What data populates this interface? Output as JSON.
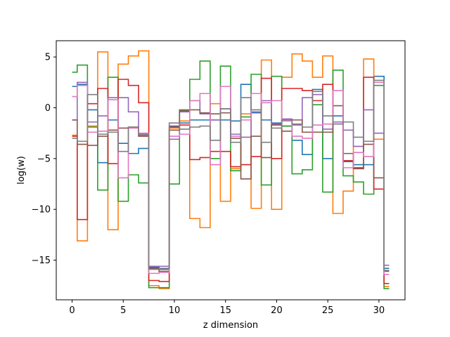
{
  "chart_data": {
    "type": "line",
    "style": "steps-mid",
    "title": "",
    "xlabel": "z dimension",
    "ylabel": "log(w)",
    "xlim": [
      -1.55,
      32.55
    ],
    "ylim": [
      -18.9,
      6.6
    ],
    "xticks": [
      0,
      5,
      10,
      15,
      20,
      25,
      30
    ],
    "xtick_labels": [
      "0",
      "5",
      "10",
      "15",
      "20",
      "25",
      "30"
    ],
    "yticks": [
      -15,
      -10,
      -5,
      0,
      5
    ],
    "ytick_labels": [
      "−15",
      "−10",
      "−5",
      "0",
      "5"
    ],
    "grid": false,
    "legend": "none",
    "x": [
      0,
      1,
      2,
      3,
      4,
      5,
      6,
      7,
      8,
      9,
      10,
      11,
      12,
      13,
      14,
      15,
      16,
      17,
      18,
      19,
      20,
      21,
      22,
      23,
      24,
      25,
      26,
      27,
      28,
      29,
      30,
      31
    ],
    "series": [
      {
        "color": "#1f77b4",
        "values": [
          2.1,
          2.3,
          -0.2,
          -5.4,
          -1.2,
          -3.5,
          -4.5,
          -4.0,
          -15.7,
          -15.9,
          -1.8,
          -1.5,
          -1.2,
          -1.2,
          -1.2,
          -1.2,
          -1.3,
          2.3,
          -0.5,
          -1.2,
          -1.5,
          -1.8,
          -3.2,
          -4.6,
          1.8,
          -5.0,
          -0.8,
          -5.3,
          -5.6,
          -5.6,
          3.1,
          -15.8
        ]
      },
      {
        "color": "#ff7f0e",
        "values": [
          -2.7,
          -13.1,
          -1.8,
          5.5,
          -12.0,
          4.3,
          5.1,
          5.6,
          -17.5,
          -17.8,
          -2.0,
          -1.3,
          -10.9,
          -11.8,
          0.4,
          -9.2,
          -6.0,
          -0.6,
          -9.9,
          4.7,
          -10.0,
          3.0,
          5.3,
          4.6,
          3.0,
          5.1,
          -10.4,
          -8.2,
          -3.8,
          4.8,
          -3.1,
          -17.6
        ]
      },
      {
        "color": "#2ca02c",
        "values": [
          3.5,
          4.2,
          -1.9,
          -8.1,
          3.0,
          -9.2,
          -6.6,
          -7.4,
          -17.7,
          -17.7,
          -7.5,
          -0.2,
          2.8,
          4.6,
          -5.0,
          4.1,
          -6.2,
          -0.9,
          3.3,
          -7.6,
          3.1,
          -1.8,
          -6.5,
          -6.1,
          0.3,
          -8.3,
          3.7,
          -6.7,
          -7.3,
          -8.5,
          2.2,
          -17.8
        ]
      },
      {
        "color": "#d62728",
        "values": [
          -2.8,
          -11.0,
          0.4,
          1.9,
          -5.5,
          2.8,
          2.2,
          0.5,
          -17.0,
          -17.1,
          -1.9,
          -1.7,
          -5.1,
          -4.9,
          -4.3,
          -4.3,
          -5.8,
          -5.6,
          -4.8,
          2.9,
          -5.0,
          1.9,
          1.9,
          1.7,
          0.7,
          2.3,
          -1.6,
          -5.2,
          -5.9,
          3.0,
          -8.0,
          -17.3
        ]
      },
      {
        "color": "#9467bd",
        "values": [
          -1.2,
          2.5,
          -1.4,
          -0.8,
          1.0,
          1.0,
          -0.4,
          -2.7,
          -15.6,
          -15.6,
          -3.1,
          -0.4,
          0.7,
          -0.6,
          -1.2,
          -0.1,
          -2.6,
          -2.9,
          -0.4,
          0.7,
          -1.6,
          -1.1,
          -1.7,
          1.0,
          1.3,
          -2.1,
          -1.4,
          -2.2,
          -3.8,
          -0.2,
          -2.5,
          -15.5
        ]
      },
      {
        "color": "#8c564b",
        "values": [
          -1.2,
          -3.6,
          -3.7,
          -2.8,
          -2.2,
          -2.0,
          -1.9,
          -2.8,
          -15.8,
          -16.1,
          -2.2,
          -0.3,
          -0.2,
          -0.5,
          -0.6,
          -0.5,
          -3.0,
          -7.0,
          -2.8,
          -4.9,
          -1.7,
          -2.3,
          -1.2,
          -2.4,
          -2.4,
          -2.4,
          0.2,
          -4.5,
          -6.0,
          -3.6,
          -6.9,
          -16.1
        ]
      },
      {
        "color": "#e377c2",
        "values": [
          1.1,
          2.2,
          -2.4,
          -2.3,
          0.8,
          -6.9,
          -2.0,
          -2.5,
          -16.3,
          -16.2,
          -2.8,
          -2.6,
          0.7,
          1.4,
          -5.6,
          2.1,
          -2.8,
          -1.2,
          1.4,
          0.5,
          0.7,
          -1.3,
          -2.8,
          -3.0,
          -1.7,
          -1.6,
          1.7,
          -5.9,
          -4.4,
          -4.8,
          2.5,
          -16.4
        ]
      },
      {
        "color": "#7f7f7f",
        "values": [
          -3.0,
          -3.3,
          1.3,
          -2.6,
          -2.4,
          -4.3,
          -1.9,
          -2.6,
          -15.9,
          -15.8,
          -1.5,
          -2.1,
          -1.9,
          -1.8,
          -3.2,
          -0.1,
          -3.4,
          1.0,
          -0.2,
          -3.4,
          -2.0,
          -1.2,
          -1.6,
          -1.9,
          1.6,
          -0.8,
          -1.6,
          -1.4,
          -2.9,
          -3.3,
          2.7,
          -16.0
        ]
      }
    ]
  }
}
